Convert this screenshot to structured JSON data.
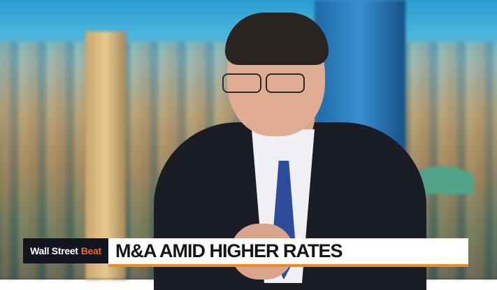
{
  "lower_third": {
    "show_name_part1": "Wall Street",
    "show_name_part2": "Beat",
    "headline": "M&A AMID HIGHER RATES",
    "accent_color": "#f26a21",
    "stripe_color": "#f08a24"
  }
}
